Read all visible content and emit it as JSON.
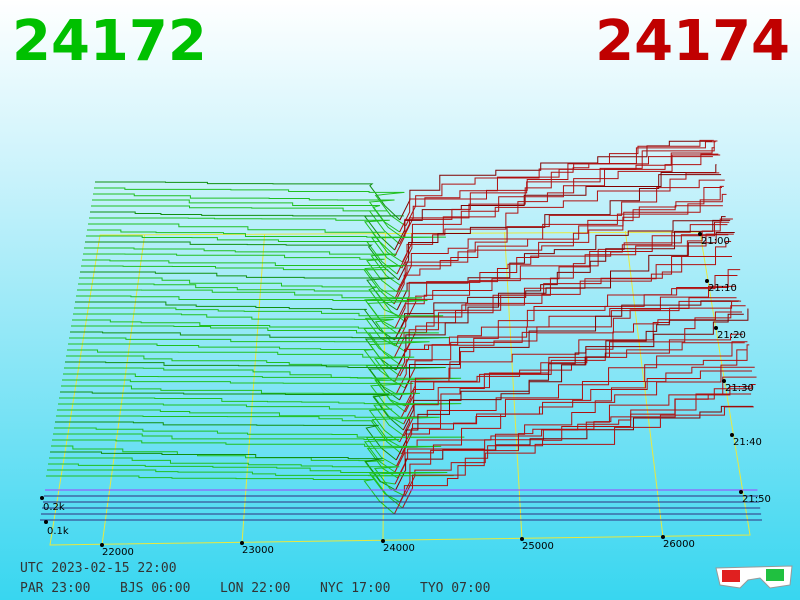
{
  "header": {
    "bid": "24172",
    "ask": "24174"
  },
  "axis": {
    "price_labels": [
      "22000",
      "23000",
      "24000",
      "25000",
      "26000"
    ],
    "depth_labels": [
      "0.2k",
      "0.1k"
    ],
    "time_labels": [
      "21:00",
      "21:10",
      "21:20",
      "21:30",
      "21:40",
      "21:50"
    ]
  },
  "footer": {
    "utc": "UTC 2023-02-15 22:00",
    "zones": [
      "PAR 23:00",
      "BJS 06:00",
      "LON 22:00",
      "NYC 17:00",
      "TYO 07:00"
    ]
  }
}
